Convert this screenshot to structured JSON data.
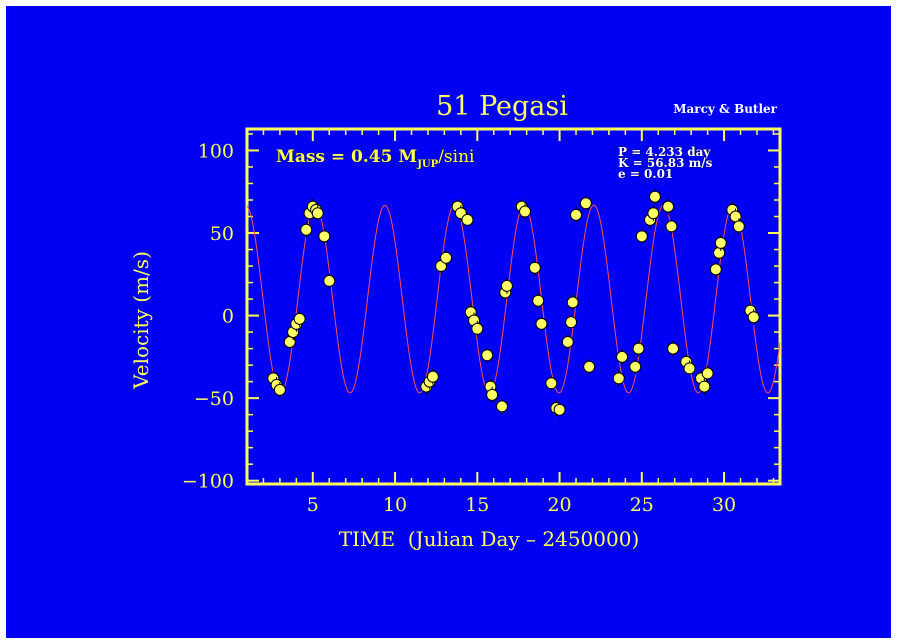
{
  "colors": {
    "background": "#0000f5",
    "foreground": "#ffff5a",
    "curve": "#ff5050",
    "point_fill": "#ffff66",
    "point_stroke": "#000000"
  },
  "chart_data": {
    "type": "scatter",
    "title": "51 Pegasi",
    "credit": "Marcy & Butler",
    "xlabel": "TIME  (Julian Day – 2450000)",
    "ylabel": "Velocity  (m/s)",
    "xlim": [
      1,
      33.4
    ],
    "ylim": [
      -102,
      113
    ],
    "xticks": [
      5,
      10,
      15,
      20,
      25,
      30
    ],
    "yticks": [
      -100,
      -50,
      0,
      50,
      100
    ],
    "mass_label": {
      "prefix": "Mass = 0.45 M",
      "subscript": "JUP",
      "suffix": "/sini"
    },
    "fit_params": [
      "P = 4.233 day",
      "K = 56.83 m/s",
      "e = 0.01"
    ],
    "fit_curve": {
      "period": 4.233,
      "amplitude": 56.83,
      "offset": 10,
      "peak_x": 5.15
    },
    "series": [
      {
        "x": [
          2.6,
          2.8,
          3.0,
          3.6,
          3.8,
          4.0,
          4.2,
          4.6,
          4.8,
          5.0,
          5.2,
          5.3,
          5.7,
          6.0,
          11.9,
          12.1,
          12.3,
          12.8,
          13.1,
          13.8,
          14.0,
          14.4,
          14.6,
          14.8,
          15.0,
          15.6,
          15.8,
          15.9,
          16.5,
          16.7,
          16.8,
          17.7,
          17.9,
          18.5,
          18.7,
          18.9,
          19.5,
          19.8,
          20.0,
          20.5,
          20.7,
          20.8,
          21.0,
          21.6,
          21.8,
          23.6,
          23.8,
          24.6,
          24.8,
          25.0,
          25.5,
          25.7,
          25.8,
          26.6,
          26.8,
          26.9,
          27.7,
          27.9,
          28.6,
          28.8,
          29.0,
          29.5,
          29.7,
          29.8,
          30.5,
          30.7,
          30.9,
          31.6,
          31.8
        ],
        "y": [
          -38,
          -42,
          -45,
          -16,
          -10,
          -5,
          -2,
          52,
          62,
          66,
          64,
          62,
          48,
          21,
          -43,
          -40,
          -37,
          30,
          35,
          66,
          62,
          58,
          2,
          -3,
          -8,
          -24,
          -43,
          -48,
          -55,
          14,
          18,
          66,
          63,
          29,
          9,
          -5,
          -41,
          -56,
          -57,
          -16,
          -4,
          8,
          61,
          68,
          -31,
          -38,
          -25,
          -31,
          -20,
          48,
          58,
          62,
          72,
          66,
          54,
          -20,
          -28,
          -32,
          -38,
          -43,
          -35,
          28,
          38,
          44,
          64,
          60,
          54,
          3,
          -1
        ]
      }
    ]
  }
}
